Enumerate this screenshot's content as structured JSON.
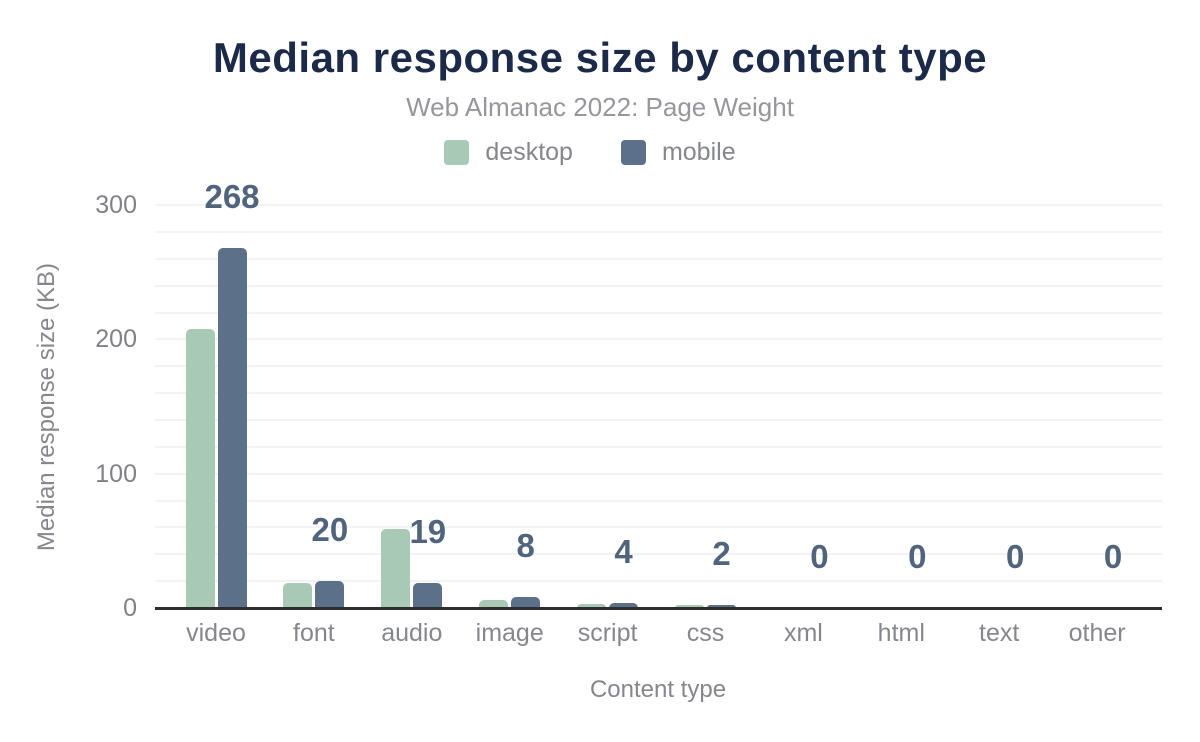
{
  "header": {
    "title": "Median response size by content type",
    "subtitle": "Web Almanac 2022: Page Weight"
  },
  "legend": [
    {
      "label": "desktop",
      "color": "#a8c9b5"
    },
    {
      "label": "mobile",
      "color": "#5d7089"
    }
  ],
  "chart_data": {
    "type": "bar",
    "title": "Median response size by content type",
    "subtitle": "Web Almanac 2022: Page Weight",
    "categories": [
      "video",
      "font",
      "audio",
      "image",
      "script",
      "css",
      "xml",
      "html",
      "text",
      "other"
    ],
    "series": [
      {
        "name": "desktop",
        "color": "#a8c9b5",
        "values": [
          208,
          19,
          59,
          6,
          3,
          2,
          0,
          0,
          0,
          0
        ]
      },
      {
        "name": "mobile",
        "color": "#5d7089",
        "values": [
          268,
          20,
          19,
          8,
          4,
          2,
          0,
          0,
          0,
          0
        ]
      }
    ],
    "bar_labels": [
      "268",
      "20",
      "19",
      "8",
      "4",
      "2",
      "0",
      "0",
      "0",
      "0"
    ],
    "bar_labels_series": "mobile",
    "xlabel": "Content type",
    "ylabel": "Median response size (KB)",
    "ylim": [
      0,
      300
    ],
    "yticks": [
      0,
      100,
      200,
      300
    ],
    "gridline_step_kb": 20,
    "grid": true,
    "legend_position": "top-center"
  },
  "colors": {
    "background": "#ffffff",
    "title": "#1b2a49",
    "subtitle": "#96979c",
    "axis_text": "#85878d",
    "tick_text": "#808288",
    "data_label": "#51647e",
    "gridline": "#f3f3f4",
    "axis_line": "#2e2e2e"
  }
}
